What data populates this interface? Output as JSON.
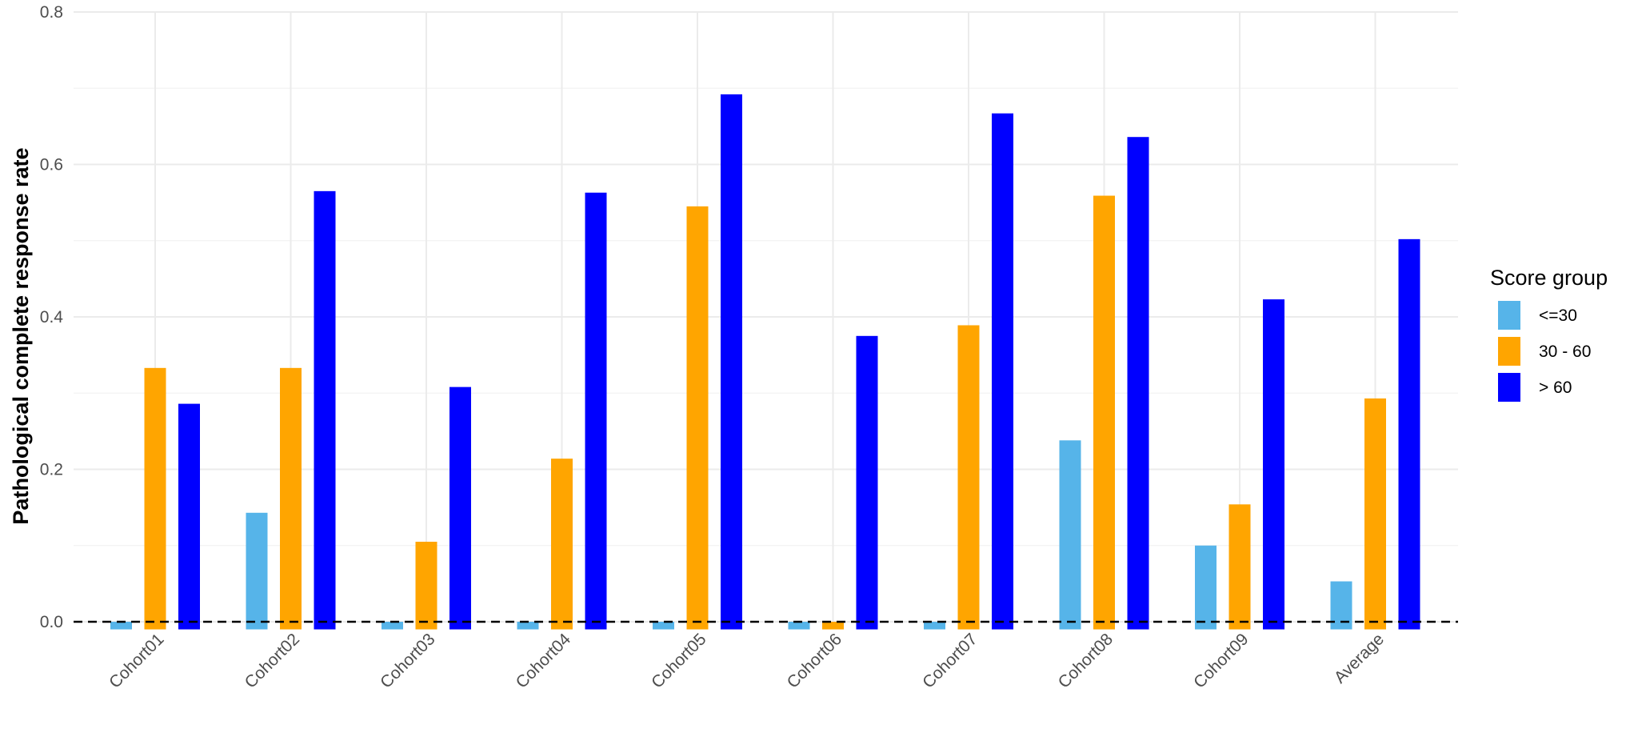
{
  "chart_data": {
    "type": "bar",
    "ylabel": "Pathological complete response rate",
    "xlabel": "",
    "ylim": [
      -0.01,
      0.8
    ],
    "yticks": [
      0.0,
      0.2,
      0.4,
      0.6,
      0.8
    ],
    "ytick_labels": [
      "0.0",
      "0.2",
      "0.4",
      "0.6",
      "0.8"
    ],
    "grid": true,
    "reference_line": {
      "y": 0.0,
      "style": "dashed"
    },
    "categories": [
      "Cohort01",
      "Cohort02",
      "Cohort03",
      "Cohort04",
      "Cohort05",
      "Cohort06",
      "Cohort07",
      "Cohort08",
      "Cohort09",
      "Average"
    ],
    "series": [
      {
        "name": "<=30",
        "color": "#56B4E9",
        "values": [
          0.0,
          0.143,
          0.0,
          0.0,
          0.0,
          0.0,
          0.0,
          0.238,
          0.1,
          0.053
        ]
      },
      {
        "name": "30 - 60",
        "color": "#FFA500",
        "values": [
          0.333,
          0.333,
          0.105,
          0.214,
          0.545,
          0.0,
          0.389,
          0.559,
          0.154,
          0.293
        ]
      },
      {
        "name": "> 60",
        "color": "#0000FF",
        "values": [
          0.286,
          0.565,
          0.308,
          0.563,
          0.692,
          0.375,
          0.667,
          0.636,
          0.423,
          0.502
        ]
      }
    ],
    "legend": {
      "title": "Score group",
      "position": "right"
    }
  }
}
